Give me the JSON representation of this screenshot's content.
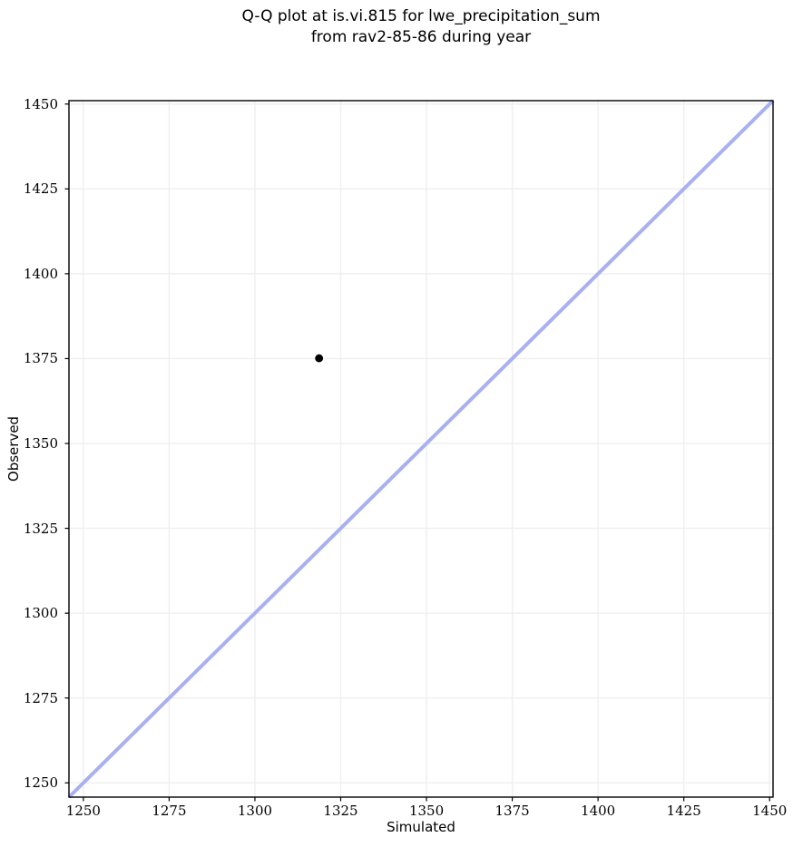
{
  "title": {
    "line1": "Q-Q plot at is.vi.815 for lwe_precipitation_sum",
    "line2": "from rav2-85-86 during year"
  },
  "chart_data": {
    "type": "scatter",
    "title": "Q-Q plot at is.vi.815 for lwe_precipitation_sum\nfrom rav2-85-86 during year",
    "xlabel": "Simulated",
    "ylabel": "Observed",
    "xlim": [
      1245.8,
      1451.0
    ],
    "ylim": [
      1245.8,
      1451.0
    ],
    "xticks": [
      1250,
      1275,
      1300,
      1325,
      1350,
      1375,
      1400,
      1425,
      1450
    ],
    "yticks": [
      1250,
      1275,
      1300,
      1325,
      1350,
      1375,
      1400,
      1425,
      1450
    ],
    "grid": true,
    "legend": "none",
    "points": [
      {
        "x": 1318.7,
        "y": 1375.1
      }
    ],
    "reference_line": {
      "kind": "identity",
      "x": [
        1245.8,
        1451.0
      ],
      "y": [
        1245.8,
        1451.0
      ]
    },
    "colors": {
      "reference_line": "#a9b0f2",
      "point": "#000000",
      "grid": "#efefef",
      "spine": "#000000",
      "background": "#ffffff",
      "text": "#000000"
    }
  }
}
